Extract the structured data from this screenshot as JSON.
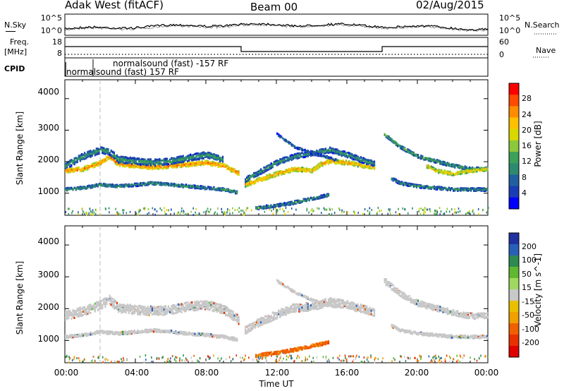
{
  "header": {
    "radar": "Adak West (fitACF)",
    "beam": "Beam 00",
    "date": "02/Aug/2015"
  },
  "top_panels": {
    "nsky_label": "N.Sky",
    "nsearch_label": "N.Search",
    "nsky_ticks": [
      "10^5",
      "10^0"
    ],
    "nsearch_ticks": [
      "10^5",
      "10^0"
    ],
    "freq_label_1": "Freq.",
    "freq_label_2": "[MHz]",
    "freq_ticks": [
      "18",
      "8"
    ],
    "nave_label": "Nave",
    "nave_ticks": [
      "60",
      "0"
    ],
    "cpid_label": "CPID",
    "cpid_modes": [
      "normalsound (fast) -157 RF",
      "normalsound (fast) 157 RF"
    ]
  },
  "power_colorbar": {
    "label": "Power [dB]",
    "ticks": [
      "28",
      "24",
      "20",
      "16",
      "12",
      "8",
      "4"
    ],
    "colors": [
      "#ff0000",
      "#ff4a00",
      "#ff8c00",
      "#ffc000",
      "#d8d800",
      "#8cc83c",
      "#3ca05a",
      "#2e8a6e",
      "#2060a0",
      "#1a3cb4",
      "#0000ff"
    ]
  },
  "velocity_colorbar": {
    "label": "Velocity [m s^-1]",
    "ticks": [
      "200",
      "100",
      "50",
      "15",
      "-15",
      "-50",
      "-100",
      "-200"
    ],
    "colors": [
      "#2030a0",
      "#2860b8",
      "#2e8a50",
      "#60b830",
      "#a0d860",
      "#c8c8c8",
      "#e8c000",
      "#f0a000",
      "#f06000",
      "#e83000",
      "#e00000"
    ]
  },
  "chart_data": [
    {
      "type": "heatmap",
      "name": "power",
      "xlabel": "Time UT",
      "ylabel": "Slant Range [km]",
      "xlim": [
        0,
        24
      ],
      "ylim": [
        300,
        4600
      ],
      "x_ticks": [
        "00:00",
        "04:00",
        "08:00",
        "12:00",
        "16:00",
        "20:00",
        "00:00"
      ],
      "y_ticks": [
        "1000",
        "2000",
        "3000",
        "4000"
      ],
      "bands": [
        {
          "t": [
            0,
            1,
            2,
            2.5,
            3,
            4,
            5,
            6,
            7,
            8,
            9,
            9.5,
            9.9
          ],
          "r": [
            1750,
            1800,
            2000,
            2200,
            1950,
            1900,
            1850,
            1900,
            1950,
            2000,
            1900,
            1750,
            1650
          ],
          "w": 130,
          "level": 26
        },
        {
          "t": [
            0,
            1,
            2,
            2.5,
            3,
            4,
            5,
            6,
            7,
            8,
            9
          ],
          "r": [
            1900,
            2200,
            2400,
            2350,
            2100,
            2050,
            2000,
            2050,
            2150,
            2250,
            2100
          ],
          "w": 200,
          "level": 12
        },
        {
          "t": [
            0,
            1,
            2,
            3,
            4,
            5,
            6,
            7,
            8,
            9,
            9.8
          ],
          "r": [
            1150,
            1200,
            1300,
            1250,
            1300,
            1350,
            1300,
            1250,
            1200,
            1150,
            1050
          ],
          "w": 90,
          "level": 12
        },
        {
          "t": [
            10.2,
            11,
            12,
            13,
            14,
            14.5,
            15,
            16,
            17,
            17.6
          ],
          "r": [
            1300,
            1450,
            1650,
            1800,
            1750,
            1950,
            2050,
            2000,
            1900,
            1850
          ],
          "w": 130,
          "level": 24
        },
        {
          "t": [
            10.2,
            11,
            12,
            13,
            14,
            15,
            16,
            17,
            17.6
          ],
          "r": [
            1450,
            1700,
            2000,
            2200,
            2300,
            2400,
            2250,
            2050,
            1950
          ],
          "w": 160,
          "level": 12
        },
        {
          "t": [
            12,
            12.5,
            13,
            14,
            15,
            15.5
          ],
          "r": [
            2900,
            2700,
            2500,
            2300,
            2150,
            2050
          ],
          "w": 60,
          "level": 10
        },
        {
          "t": [
            10.8,
            12,
            13,
            14,
            15
          ],
          "r": [
            560,
            640,
            740,
            860,
            980
          ],
          "w": 90,
          "level": 12
        },
        {
          "t": [
            18.1,
            19,
            20,
            21,
            22,
            23,
            24
          ],
          "r": [
            2900,
            2500,
            2200,
            2050,
            1900,
            1800,
            1800
          ],
          "w": 100,
          "level": 14
        },
        {
          "t": [
            20.5,
            21,
            22,
            22.5,
            23,
            24
          ],
          "r": [
            1900,
            1750,
            1650,
            1700,
            1750,
            1800
          ],
          "w": 110,
          "level": 22
        },
        {
          "t": [
            18.5,
            19,
            20,
            21,
            22,
            23,
            24
          ],
          "r": [
            1500,
            1350,
            1250,
            1200,
            1150,
            1150,
            1150
          ],
          "w": 90,
          "level": 12
        }
      ]
    },
    {
      "type": "heatmap",
      "name": "velocity",
      "xlabel": "Time UT",
      "ylabel": "Slant Range [km]",
      "xlim": [
        0,
        24
      ],
      "ylim": [
        300,
        4600
      ],
      "x_ticks": [
        "00:00",
        "04:00",
        "08:00",
        "12:00",
        "16:00",
        "20:00",
        "00:00"
      ],
      "y_ticks": [
        "1000",
        "2000",
        "3000",
        "4000"
      ],
      "bands": [
        {
          "t": [
            0,
            1,
            2,
            2.5,
            3,
            4,
            5,
            6,
            7,
            8,
            9,
            9.5,
            9.9
          ],
          "r": [
            1800,
            1950,
            2150,
            2300,
            2050,
            2000,
            1950,
            2000,
            2100,
            2150,
            2000,
            1800,
            1650
          ],
          "w": 280,
          "level": 0
        },
        {
          "t": [
            0,
            1,
            2,
            3,
            4,
            5,
            6,
            7,
            8,
            9,
            9.8
          ],
          "r": [
            1150,
            1200,
            1300,
            1250,
            1300,
            1350,
            1300,
            1250,
            1200,
            1150,
            1050
          ],
          "w": 90,
          "level": 0
        },
        {
          "t": [
            10.2,
            11,
            12,
            13,
            14,
            15,
            16,
            17,
            17.6
          ],
          "r": [
            1350,
            1600,
            1850,
            2050,
            2100,
            2250,
            2150,
            2000,
            1900
          ],
          "w": 250,
          "level": 0
        },
        {
          "t": [
            12,
            13,
            14,
            15,
            15.5
          ],
          "r": [
            2900,
            2550,
            2300,
            2150,
            2050
          ],
          "w": 70,
          "level": 0
        },
        {
          "t": [
            10.8,
            12,
            13,
            14,
            15
          ],
          "r": [
            560,
            640,
            740,
            860,
            980
          ],
          "w": 100,
          "level": -60
        },
        {
          "t": [
            18.1,
            19,
            20,
            21,
            22,
            23,
            24
          ],
          "r": [
            2900,
            2500,
            2200,
            2050,
            1900,
            1800,
            1800
          ],
          "w": 180,
          "level": 0
        },
        {
          "t": [
            18.5,
            19,
            20,
            21,
            22,
            23,
            24
          ],
          "r": [
            1500,
            1350,
            1250,
            1200,
            1150,
            1150,
            1150
          ],
          "w": 90,
          "level": 0
        }
      ]
    }
  ]
}
